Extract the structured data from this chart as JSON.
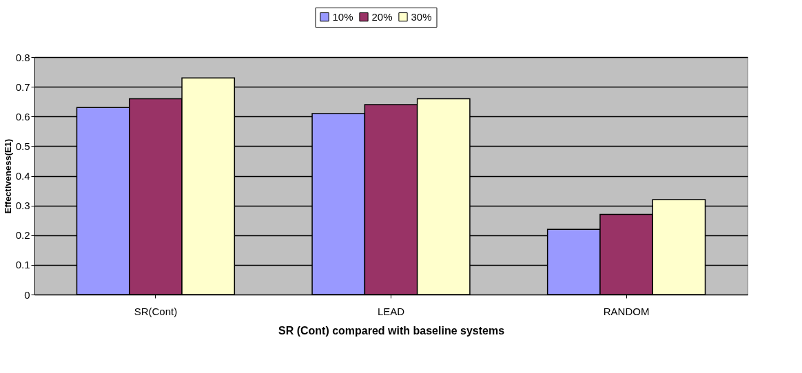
{
  "chart_data": {
    "type": "bar",
    "xlabel": "SR (Cont) compared with baseline systems",
    "ylabel": "Effectiveness(E1)",
    "categories": [
      "SR(Cont)",
      "LEAD",
      "RANDOM"
    ],
    "series": [
      {
        "name": "10%",
        "color": "#9999ff",
        "values": [
          0.63,
          0.61,
          0.22
        ]
      },
      {
        "name": "20%",
        "color": "#993366",
        "values": [
          0.66,
          0.64,
          0.27
        ]
      },
      {
        "name": "30%",
        "color": "#ffffcc",
        "values": [
          0.73,
          0.66,
          0.32
        ]
      }
    ],
    "ylim": [
      0,
      0.8
    ],
    "yticks": [
      0,
      0.1,
      0.2,
      0.3,
      0.4,
      0.5,
      0.6,
      0.7,
      0.8
    ],
    "grid": "y",
    "legend": "top"
  }
}
